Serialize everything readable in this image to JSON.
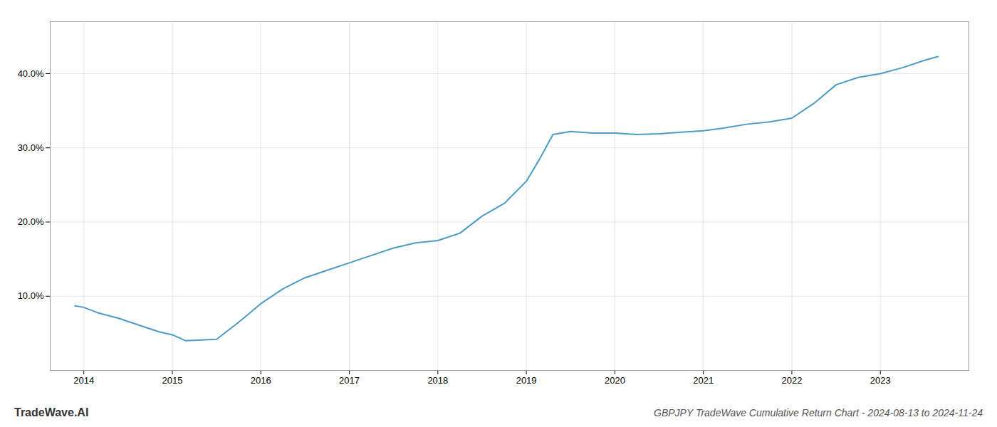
{
  "chart_data": {
    "type": "line",
    "title": "GBPJPY TradeWave Cumulative Return Chart - 2024-08-13 to 2024-11-24",
    "annotations": [
      "TradeWave.AI"
    ],
    "x": [
      2013.9,
      2014.0,
      2014.15,
      2014.4,
      2014.65,
      2014.85,
      2015.0,
      2015.15,
      2015.5,
      2015.75,
      2016.0,
      2016.25,
      2016.5,
      2016.75,
      2017.0,
      2017.25,
      2017.5,
      2017.75,
      2018.0,
      2018.25,
      2018.5,
      2018.75,
      2019.0,
      2019.15,
      2019.3,
      2019.5,
      2019.75,
      2020.0,
      2020.25,
      2020.5,
      2020.75,
      2021.0,
      2021.25,
      2021.5,
      2021.75,
      2022.0,
      2022.25,
      2022.5,
      2022.75,
      2023.0,
      2023.25,
      2023.5,
      2023.65
    ],
    "values": [
      8.7,
      8.5,
      7.8,
      7.0,
      6.0,
      5.2,
      4.8,
      4.0,
      4.2,
      6.5,
      9.0,
      11.0,
      12.5,
      13.5,
      14.5,
      15.5,
      16.5,
      17.2,
      17.5,
      18.5,
      20.8,
      22.5,
      25.5,
      28.5,
      31.8,
      32.2,
      32.0,
      32.0,
      31.8,
      31.9,
      32.1,
      32.3,
      32.7,
      33.2,
      33.5,
      34.0,
      36.0,
      38.5,
      39.5,
      40.0,
      40.8,
      41.8,
      42.3
    ],
    "color": "#4a9cc7",
    "xlim": [
      2013.62,
      2024.0
    ],
    "ylim": [
      0,
      47
    ],
    "xticks": [
      2014,
      2015,
      2016,
      2017,
      2018,
      2019,
      2020,
      2021,
      2022,
      2023
    ],
    "yticks": [
      {
        "value": 10.0,
        "label": "10.0%"
      },
      {
        "value": 20.0,
        "label": "20.0%"
      },
      {
        "value": 30.0,
        "label": "30.0%"
      },
      {
        "value": 40.0,
        "label": "40.0%"
      }
    ],
    "grid": true
  }
}
